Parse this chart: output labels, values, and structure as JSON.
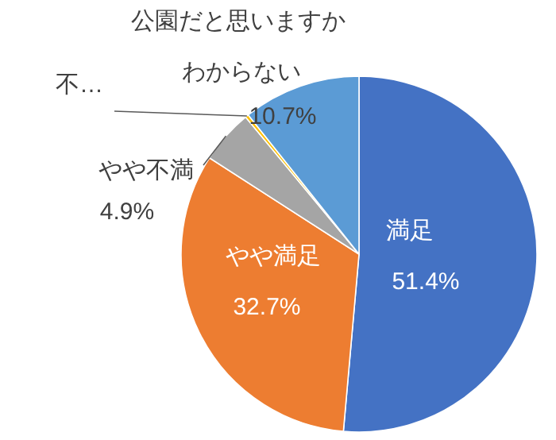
{
  "chart_data": {
    "type": "pie",
    "title": "公園だと思いますか",
    "categories": [
      "満足",
      "やや満足",
      "やや不満",
      "不…",
      "わからない"
    ],
    "values": [
      51.4,
      32.7,
      4.9,
      0.3,
      10.7
    ],
    "colors": [
      "#4472c4",
      "#ed7d31",
      "#a5a5a5",
      "#ffc000",
      "#5b9bd5"
    ],
    "value_labels": [
      "51.4%",
      "32.7%",
      "4.9%",
      null,
      "10.7%"
    ]
  }
}
